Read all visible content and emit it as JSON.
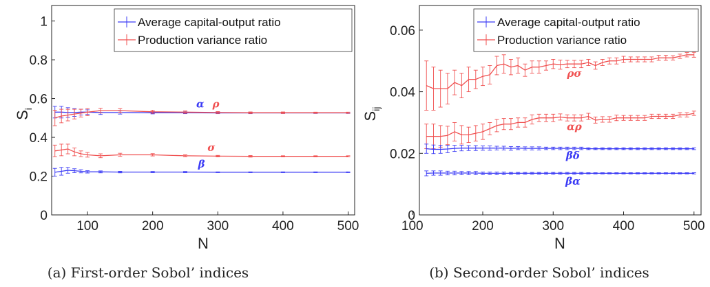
{
  "legend": {
    "series_a": "Average capital-output ratio",
    "series_b": "Production variance ratio"
  },
  "colors": {
    "blue": "#3b3bf5",
    "red": "#f05050"
  },
  "chart_data": [
    {
      "type": "line",
      "caption": "(a) First-order Sobol’ indices",
      "xlabel": "N",
      "ylabel": "S",
      "ylabel_sub": "i",
      "xlim": [
        45,
        510
      ],
      "ylim": [
        0,
        1.08
      ],
      "xticks": [
        100,
        200,
        300,
        400,
        500
      ],
      "yticks": [
        0,
        0.2,
        0.4,
        0.6,
        0.8,
        1
      ],
      "grid": false,
      "legend_position": "top-right",
      "series": [
        {
          "color_key": "blue",
          "legend_key": "series_a",
          "x": [
            50,
            60,
            70,
            80,
            90,
            100,
            120,
            150,
            200,
            250,
            300,
            350,
            400,
            450,
            500
          ],
          "values": [
            0.53,
            0.53,
            0.528,
            0.528,
            0.53,
            0.53,
            0.528,
            0.528,
            0.527,
            0.527,
            0.526,
            0.526,
            0.526,
            0.526,
            0.526
          ],
          "err": [
            0.03,
            0.03,
            0.025,
            0.02,
            0.015,
            0.012,
            0.01,
            0.008,
            0.006,
            0.005,
            0.004,
            0.004,
            0.003,
            0.003,
            0.003
          ]
        },
        {
          "color_key": "red",
          "legend_key": "series_b",
          "x": [
            50,
            60,
            70,
            80,
            90,
            100,
            120,
            150,
            200,
            250,
            300,
            350,
            400,
            450,
            500
          ],
          "values": [
            0.5,
            0.51,
            0.515,
            0.52,
            0.525,
            0.53,
            0.538,
            0.538,
            0.532,
            0.53,
            0.528,
            0.527,
            0.527,
            0.527,
            0.527
          ],
          "err": [
            0.04,
            0.035,
            0.03,
            0.025,
            0.02,
            0.018,
            0.012,
            0.01,
            0.008,
            0.006,
            0.005,
            0.004,
            0.004,
            0.003,
            0.003
          ]
        },
        {
          "color_key": "red",
          "legend_key": "series_b",
          "x": [
            50,
            60,
            70,
            80,
            90,
            100,
            120,
            150,
            200,
            250,
            300,
            350,
            400,
            450,
            500
          ],
          "values": [
            0.33,
            0.335,
            0.34,
            0.325,
            0.315,
            0.31,
            0.305,
            0.31,
            0.31,
            0.305,
            0.303,
            0.302,
            0.302,
            0.302,
            0.302
          ],
          "err": [
            0.03,
            0.03,
            0.025,
            0.02,
            0.015,
            0.012,
            0.01,
            0.008,
            0.006,
            0.005,
            0.004,
            0.004,
            0.003,
            0.003,
            0.003
          ]
        },
        {
          "color_key": "blue",
          "legend_key": "series_a",
          "x": [
            50,
            60,
            70,
            80,
            90,
            100,
            120,
            150,
            200,
            250,
            300,
            350,
            400,
            450,
            500
          ],
          "values": [
            0.22,
            0.225,
            0.23,
            0.228,
            0.225,
            0.222,
            0.222,
            0.221,
            0.221,
            0.221,
            0.22,
            0.22,
            0.22,
            0.22,
            0.22
          ],
          "err": [
            0.02,
            0.02,
            0.015,
            0.01,
            0.008,
            0.006,
            0.005,
            0.004,
            0.003,
            0.003,
            0.002,
            0.002,
            0.002,
            0.002,
            0.002
          ]
        }
      ],
      "annotations": [
        {
          "text": "α",
          "x": 273,
          "y": 0.555,
          "color_key": "blue"
        },
        {
          "text": "ρ",
          "x": 297,
          "y": 0.555,
          "color_key": "red"
        },
        {
          "text": "σ",
          "x": 290,
          "y": 0.33,
          "color_key": "red"
        },
        {
          "text": "β",
          "x": 275,
          "y": 0.245,
          "color_key": "blue"
        }
      ]
    },
    {
      "type": "line",
      "caption": "(b) Second-order Sobol’ indices",
      "xlabel": "N",
      "ylabel": "S",
      "ylabel_sub": "ij",
      "xlim": [
        110,
        510
      ],
      "ylim": [
        0,
        0.068
      ],
      "xticks": [
        100,
        200,
        300,
        400,
        500
      ],
      "yticks": [
        0,
        0.02,
        0.04,
        0.06
      ],
      "grid": false,
      "legend_position": "top-right",
      "series": [
        {
          "color_key": "red",
          "legend_key": "series_b",
          "x": [
            120,
            130,
            140,
            150,
            160,
            170,
            180,
            190,
            200,
            210,
            220,
            230,
            240,
            250,
            260,
            270,
            280,
            290,
            300,
            310,
            320,
            330,
            340,
            350,
            360,
            370,
            380,
            390,
            400,
            410,
            420,
            430,
            440,
            450,
            460,
            470,
            480,
            490,
            500
          ],
          "values": [
            0.042,
            0.041,
            0.041,
            0.041,
            0.043,
            0.042,
            0.044,
            0.044,
            0.045,
            0.0455,
            0.0485,
            0.049,
            0.048,
            0.0485,
            0.047,
            0.048,
            0.048,
            0.0485,
            0.049,
            0.0488,
            0.049,
            0.049,
            0.049,
            0.0495,
            0.0485,
            0.0495,
            0.05,
            0.05,
            0.0505,
            0.0505,
            0.0505,
            0.0505,
            0.0505,
            0.051,
            0.051,
            0.051,
            0.0515,
            0.052,
            0.052
          ],
          "err": [
            0.008,
            0.007,
            0.006,
            0.005,
            0.004,
            0.004,
            0.004,
            0.003,
            0.003,
            0.003,
            0.003,
            0.003,
            0.0025,
            0.0025,
            0.002,
            0.002,
            0.002,
            0.0015,
            0.0015,
            0.0015,
            0.0012,
            0.0012,
            0.0012,
            0.001,
            0.0012,
            0.001,
            0.001,
            0.001,
            0.001,
            0.0008,
            0.0008,
            0.0008,
            0.0008,
            0.0008,
            0.0008,
            0.0007,
            0.0007,
            0.0007,
            0.0008
          ]
        },
        {
          "color_key": "red",
          "legend_key": "series_b",
          "x": [
            120,
            130,
            140,
            150,
            160,
            170,
            180,
            190,
            200,
            210,
            220,
            230,
            240,
            250,
            260,
            270,
            280,
            290,
            300,
            310,
            320,
            330,
            340,
            350,
            360,
            370,
            380,
            390,
            400,
            410,
            420,
            430,
            440,
            450,
            460,
            470,
            480,
            490,
            500
          ],
          "values": [
            0.0255,
            0.0255,
            0.0255,
            0.0258,
            0.027,
            0.026,
            0.026,
            0.0265,
            0.027,
            0.028,
            0.029,
            0.0295,
            0.0295,
            0.03,
            0.03,
            0.031,
            0.0315,
            0.0315,
            0.0315,
            0.0318,
            0.0315,
            0.0315,
            0.0315,
            0.032,
            0.0308,
            0.031,
            0.031,
            0.0315,
            0.0315,
            0.0315,
            0.0315,
            0.0315,
            0.032,
            0.032,
            0.032,
            0.032,
            0.0325,
            0.0325,
            0.033
          ],
          "err": [
            0.004,
            0.004,
            0.0035,
            0.003,
            0.003,
            0.003,
            0.0025,
            0.0025,
            0.0025,
            0.002,
            0.002,
            0.0018,
            0.0018,
            0.0015,
            0.0015,
            0.0015,
            0.0012,
            0.0012,
            0.0012,
            0.001,
            0.001,
            0.001,
            0.001,
            0.001,
            0.001,
            0.0009,
            0.0009,
            0.0009,
            0.0008,
            0.0008,
            0.0008,
            0.0008,
            0.0007,
            0.0007,
            0.0007,
            0.0007,
            0.0007,
            0.0007,
            0.0007
          ]
        },
        {
          "color_key": "blue",
          "legend_key": "series_a",
          "x": [
            120,
            130,
            140,
            150,
            160,
            170,
            180,
            190,
            200,
            210,
            220,
            230,
            240,
            250,
            260,
            270,
            280,
            290,
            300,
            310,
            320,
            330,
            340,
            350,
            360,
            370,
            380,
            390,
            400,
            410,
            420,
            430,
            440,
            450,
            460,
            470,
            480,
            490,
            500
          ],
          "values": [
            0.0215,
            0.0213,
            0.0213,
            0.0214,
            0.0216,
            0.0217,
            0.0217,
            0.0217,
            0.0217,
            0.0217,
            0.0217,
            0.0217,
            0.0216,
            0.0217,
            0.0216,
            0.0216,
            0.0216,
            0.0216,
            0.0216,
            0.0216,
            0.0216,
            0.0216,
            0.0216,
            0.0215,
            0.0215,
            0.0215,
            0.0215,
            0.0215,
            0.0215,
            0.0215,
            0.0215,
            0.0215,
            0.0215,
            0.0215,
            0.0215,
            0.0215,
            0.0215,
            0.0215,
            0.0215
          ],
          "err": [
            0.0015,
            0.0014,
            0.0013,
            0.0012,
            0.001,
            0.0009,
            0.0008,
            0.0008,
            0.0007,
            0.0007,
            0.0006,
            0.0006,
            0.0006,
            0.0005,
            0.0005,
            0.0005,
            0.0005,
            0.0004,
            0.0004,
            0.0004,
            0.0004,
            0.0004,
            0.0004,
            0.0003,
            0.0003,
            0.0003,
            0.0003,
            0.0003,
            0.0003,
            0.0003,
            0.0003,
            0.0003,
            0.0003,
            0.0003,
            0.0003,
            0.0003,
            0.0003,
            0.0003,
            0.0003
          ]
        },
        {
          "color_key": "blue",
          "legend_key": "series_a",
          "x": [
            120,
            130,
            140,
            150,
            160,
            170,
            180,
            190,
            200,
            210,
            220,
            230,
            240,
            250,
            260,
            270,
            280,
            290,
            300,
            310,
            320,
            330,
            340,
            350,
            360,
            370,
            380,
            390,
            400,
            410,
            420,
            430,
            440,
            450,
            460,
            470,
            480,
            490,
            500
          ],
          "values": [
            0.0135,
            0.0136,
            0.0136,
            0.0136,
            0.0136,
            0.0136,
            0.0136,
            0.0136,
            0.0135,
            0.0135,
            0.0135,
            0.0135,
            0.0135,
            0.0135,
            0.0135,
            0.0135,
            0.0135,
            0.0135,
            0.0135,
            0.0135,
            0.0135,
            0.0135,
            0.0135,
            0.0135,
            0.0135,
            0.0135,
            0.0135,
            0.0135,
            0.0135,
            0.0135,
            0.0135,
            0.0135,
            0.0135,
            0.0135,
            0.0135,
            0.0135,
            0.0135,
            0.0135,
            0.0135
          ],
          "err": [
            0.0008,
            0.0007,
            0.0007,
            0.0006,
            0.0006,
            0.0005,
            0.0005,
            0.0005,
            0.0004,
            0.0004,
            0.0004,
            0.0004,
            0.0003,
            0.0003,
            0.0003,
            0.0003,
            0.0003,
            0.0003,
            0.0003,
            0.0003,
            0.0003,
            0.0003,
            0.0003,
            0.0002,
            0.0002,
            0.0002,
            0.0002,
            0.0002,
            0.0002,
            0.0002,
            0.0002,
            0.0002,
            0.0002,
            0.0002,
            0.0002,
            0.0002,
            0.0002,
            0.0002,
            0.0002
          ]
        }
      ],
      "annotations": [
        {
          "text": "ρσ",
          "x": 330,
          "y": 0.0448,
          "color_key": "red"
        },
        {
          "text": "αρ",
          "x": 330,
          "y": 0.0275,
          "color_key": "red"
        },
        {
          "text": "βδ",
          "x": 328,
          "y": 0.0182,
          "color_key": "blue"
        },
        {
          "text": "βα",
          "x": 328,
          "y": 0.0098,
          "color_key": "blue"
        }
      ]
    }
  ]
}
